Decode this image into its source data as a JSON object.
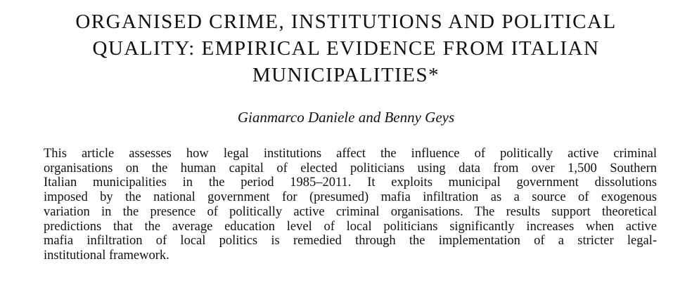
{
  "paper": {
    "title_lines": [
      "ORGANISED CRIME, INSTITUTIONS AND POLITICAL",
      "QUALITY: EMPIRICAL EVIDENCE FROM ITALIAN",
      "MUNICIPALITIES*"
    ],
    "authors": "Gianmarco Daniele and Benny Geys",
    "abstract_lines": [
      "This article assesses how legal institutions affect the influence of politically active criminal",
      "organisations on the human capital of elected politicians using data from over 1,500 Southern",
      "Italian municipalities in the period 1985–2011. It exploits municipal government dissolutions",
      "imposed by the national government for (presumed) mafia infiltration as a source of exogenous",
      "variation in the presence of politically active criminal organisations. The results support theoretical",
      "predictions that the average education level of local politicians significantly increases when active",
      "mafia infiltration of local politics is remedied through the implementation of a stricter legal-",
      "institutional framework."
    ]
  }
}
